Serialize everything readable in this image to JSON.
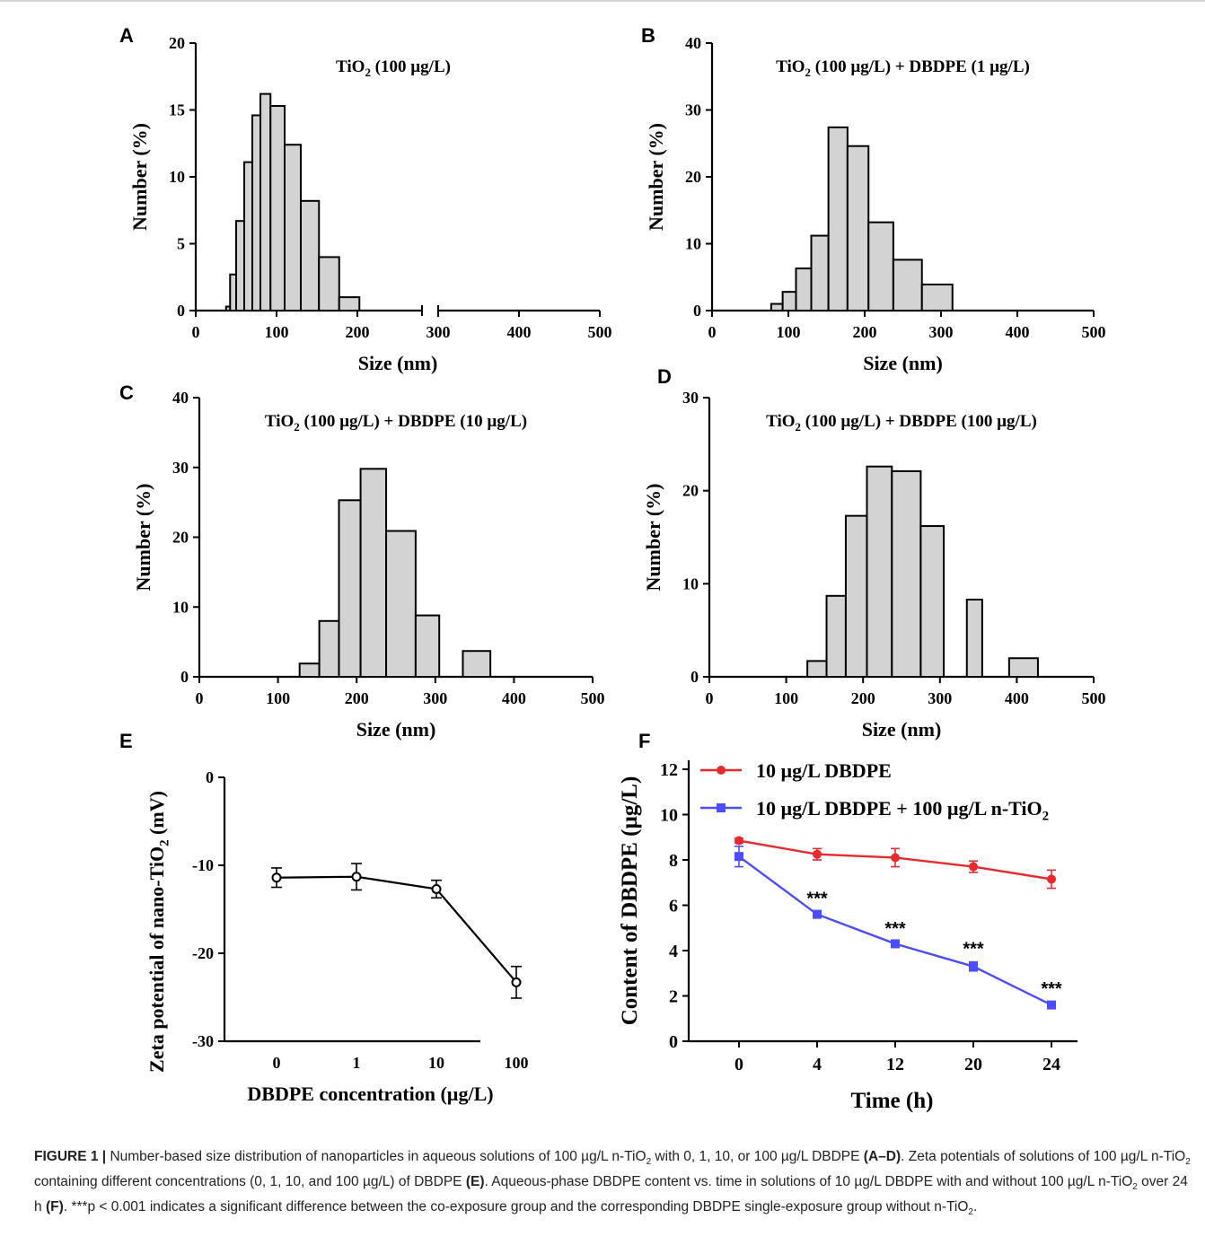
{
  "chart_data": [
    {
      "panel": "A",
      "type": "bar",
      "title": "TiO₂ (100 µg/L)",
      "xlabel": "Size (nm)",
      "ylabel": "Number (%)",
      "xlim": [
        0,
        500
      ],
      "ylim": [
        0,
        20
      ],
      "xticks": [
        "0",
        "100",
        "200",
        "300",
        "400",
        "500"
      ],
      "yticks": [
        "0",
        "5",
        "10",
        "15",
        "20"
      ],
      "axis_break": [
        280,
        300
      ],
      "x": [
        40,
        45,
        55,
        65,
        75,
        85,
        100,
        120,
        140,
        165,
        190
      ],
      "values": [
        0.3,
        2.7,
        6.7,
        11.1,
        14.6,
        16.2,
        15.3,
        12.4,
        8.2,
        4.0,
        1.0
      ]
    },
    {
      "panel": "B",
      "type": "bar",
      "title": "TiO₂ (100 µg/L) + DBDPE (1 µg/L)",
      "xlabel": "Size (nm)",
      "ylabel": "Number (%)",
      "xlim": [
        0,
        500
      ],
      "ylim": [
        0,
        40
      ],
      "xticks": [
        "0",
        "100",
        "200",
        "300",
        "400",
        "500"
      ],
      "yticks": [
        "0",
        "10",
        "20",
        "30",
        "40"
      ],
      "x": [
        85,
        100,
        120,
        140,
        165,
        190,
        220,
        255,
        295
      ],
      "values": [
        1.0,
        2.8,
        6.3,
        11.2,
        27.4,
        24.6,
        13.2,
        7.6,
        3.9
      ]
    },
    {
      "panel": "C",
      "type": "bar",
      "title": "TiO₂ (100 µg/L) + DBDPE (10 µg/L)",
      "xlabel": "Size (nm)",
      "ylabel": "Number (%)",
      "xlim": [
        0,
        500
      ],
      "ylim": [
        0,
        40
      ],
      "xticks": [
        "0",
        "100",
        "200",
        "300",
        "400",
        "500"
      ],
      "yticks": [
        "0",
        "10",
        "20",
        "30",
        "40"
      ],
      "x": [
        140,
        165,
        190,
        220,
        255,
        295,
        345
      ],
      "values": [
        1.9,
        8.0,
        25.3,
        29.8,
        20.9,
        8.8,
        3.7
      ]
    },
    {
      "panel": "D",
      "type": "bar",
      "title": "TiO₂ (100 µg/L) + DBDPE (100 µg/L)",
      "xlabel": "Size (nm)",
      "ylabel": "Number (%)",
      "xlim": [
        0,
        500
      ],
      "ylim": [
        0,
        30
      ],
      "xticks": [
        "0",
        "100",
        "200",
        "300",
        "400",
        "500"
      ],
      "yticks": [
        "0",
        "10",
        "20",
        "30"
      ],
      "x": [
        140,
        165,
        190,
        220,
        255,
        295,
        345,
        400
      ],
      "values": [
        1.7,
        8.7,
        17.3,
        22.6,
        22.1,
        16.2,
        8.3,
        2.0
      ]
    },
    {
      "panel": "E",
      "type": "line",
      "xlabel": "DBDPE concentration (µg/L)",
      "ylabel": "Zeta potential of nano-TiO₂ (mV)",
      "categories": [
        "0",
        "1",
        "10",
        "100"
      ],
      "ylim": [
        -30,
        0
      ],
      "yticks": [
        "0",
        "-10",
        "-20",
        "-30"
      ],
      "values": [
        -11.4,
        -11.3,
        -12.7,
        -23.3
      ],
      "errors": [
        1.1,
        1.5,
        1.0,
        1.8
      ]
    },
    {
      "panel": "F",
      "type": "line",
      "xlabel": "Time (h)",
      "ylabel": "Content of DBDPE (µg/L)",
      "categories": [
        "0",
        "4",
        "12",
        "20",
        "24"
      ],
      "ylim": [
        0,
        12
      ],
      "yticks": [
        "0",
        "2",
        "4",
        "6",
        "8",
        "10",
        "12"
      ],
      "legend_position": "top",
      "series": [
        {
          "name": "10 µg/L DBDPE",
          "color": "#e8292d",
          "marker": "circle",
          "values": [
            8.85,
            8.25,
            8.1,
            7.7,
            7.15
          ],
          "errors": [
            0.1,
            0.25,
            0.4,
            0.25,
            0.4
          ]
        },
        {
          "name": "10 µg/L DBDPE + 100 µg/L n-TiO₂",
          "color": "#4b4dff",
          "marker": "square",
          "values": [
            8.15,
            5.6,
            4.3,
            3.3,
            1.6
          ],
          "errors": [
            0.45,
            0.12,
            0.1,
            0.2,
            0.15
          ]
        }
      ],
      "annotations": [
        "***",
        "***",
        "***",
        "***"
      ]
    }
  ],
  "caption": {
    "fig_label": "FIGURE 1 |",
    "s1": " Number-based size distribution of nanoparticles in aqueous solutions of 100 µg/L n-TiO",
    "sub": "2",
    "s2": " with 0, 1, 10, or 100 µg/L DBDPE ",
    "b1": "(A–D)",
    "s3": ". Zeta potentials of solutions of 100 µg/L n-TiO",
    "s4": " containing different concentrations (0, 1, 10, and 100 µg/L) of DBDPE ",
    "b2": "(E)",
    "s5": ". Aqueous-phase DBDPE content vs. time in solutions of 10 µg/L DBDPE with and without 100 µg/L n-TiO",
    "s6": " over 24 h ",
    "b3": "(F)",
    "s7": ". ***p < 0.001 indicates a significant difference between the co-exposure group and the corresponding DBDPE single-exposure group without n-TiO",
    "s8": "."
  }
}
